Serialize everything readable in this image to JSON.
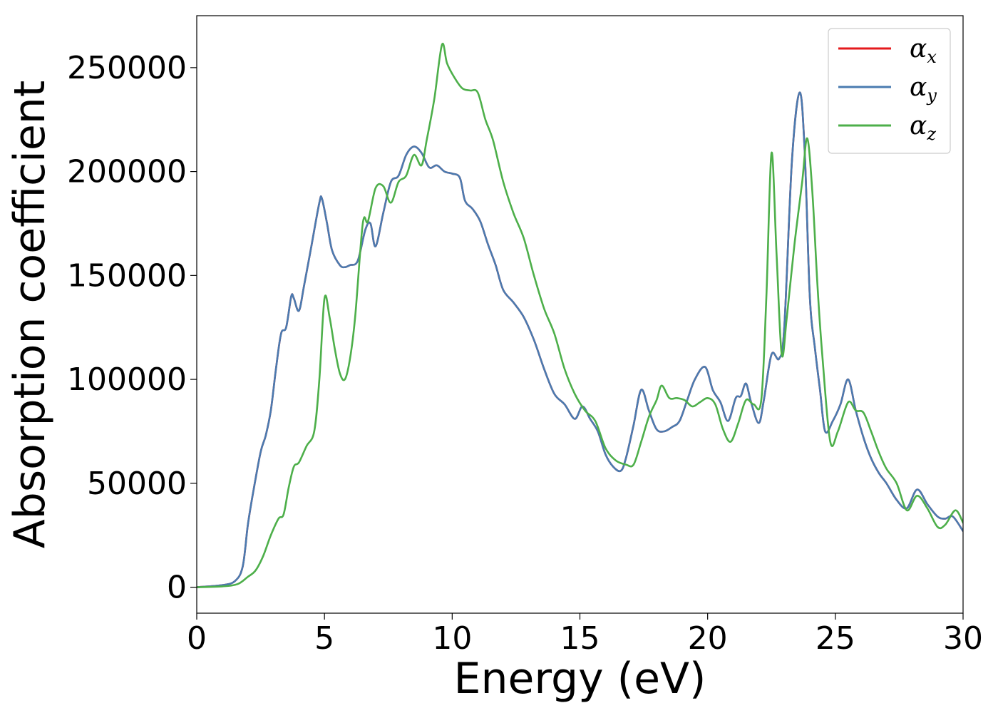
{
  "chart_data": {
    "type": "line",
    "xlabel": "Energy (eV)",
    "ylabel": "Absorption coefficient",
    "xlim": [
      0,
      30
    ],
    "ylim": [
      -12500,
      275000
    ],
    "xticks": [
      0,
      5,
      10,
      15,
      20,
      25,
      30
    ],
    "yticks": [
      0,
      50000,
      100000,
      150000,
      200000,
      250000
    ],
    "xtick_labels": [
      "0",
      "5",
      "10",
      "15",
      "20",
      "25",
      "30"
    ],
    "ytick_labels": [
      "0",
      "50000",
      "100000",
      "150000",
      "200000",
      "250000"
    ],
    "grid": false,
    "legend_position": "top-right",
    "series": [
      {
        "name": "α",
        "sub": "x",
        "color": "#e41a1c",
        "x": [
          0,
          1,
          1.5,
          1.8,
          2.0,
          2.2,
          2.5,
          2.7,
          2.9,
          3.1,
          3.3,
          3.5,
          3.7,
          3.8,
          4.0,
          4.2,
          4.5,
          4.8,
          4.9,
          5.1,
          5.3,
          5.6,
          5.8,
          6.0,
          6.3,
          6.6,
          6.8,
          7.0,
          7.3,
          7.6,
          7.9,
          8.2,
          8.5,
          8.8,
          9.1,
          9.4,
          9.7,
          10.0,
          10.3,
          10.5,
          10.8,
          11.1,
          11.4,
          11.7,
          12.0,
          12.4,
          12.8,
          13.2,
          13.6,
          14.0,
          14.4,
          14.8,
          15.1,
          15.4,
          15.7,
          16.0,
          16.3,
          16.6,
          16.8,
          17.1,
          17.4,
          17.7,
          18.0,
          18.3,
          18.6,
          18.9,
          19.2,
          19.5,
          19.9,
          20.2,
          20.5,
          20.8,
          21.1,
          21.3,
          21.5,
          21.7,
          22.0,
          22.2,
          22.5,
          22.8,
          23.0,
          23.3,
          23.6,
          23.8,
          24.0,
          24.2,
          24.4,
          24.6,
          24.9,
          25.2,
          25.5,
          25.8,
          26.1,
          26.4,
          26.7,
          27.0,
          27.4,
          27.8,
          28.2,
          28.6,
          29.0,
          29.3,
          29.6,
          30.0
        ],
        "y": [
          0,
          1000,
          3000,
          10000,
          30000,
          45000,
          65000,
          73000,
          85000,
          105000,
          122000,
          125000,
          140000,
          139000,
          133000,
          145000,
          165000,
          185000,
          187000,
          175000,
          162000,
          155000,
          154000,
          155000,
          157000,
          172000,
          175000,
          164000,
          180000,
          195000,
          198000,
          208000,
          212000,
          209000,
          202000,
          203000,
          200000,
          199000,
          197000,
          186000,
          182000,
          176000,
          165000,
          155000,
          143000,
          137000,
          130000,
          119000,
          105000,
          93000,
          88000,
          81000,
          87000,
          81000,
          75000,
          64000,
          58000,
          56000,
          62000,
          78000,
          95000,
          85000,
          76000,
          75000,
          77000,
          80000,
          90000,
          100000,
          106000,
          95000,
          89000,
          80000,
          91000,
          92000,
          98000,
          89000,
          79000,
          90000,
          112000,
          110000,
          125000,
          205000,
          238000,
          210000,
          140000,
          115000,
          95000,
          75000,
          80000,
          88000,
          100000,
          85000,
          72000,
          62000,
          55000,
          50000,
          42000,
          38000,
          47000,
          40000,
          34000,
          33000,
          34000,
          27000
        ]
      },
      {
        "name": "α",
        "sub": "y",
        "color": "#4a7bb0",
        "x": [
          0,
          1,
          1.5,
          1.8,
          2.0,
          2.2,
          2.5,
          2.7,
          2.9,
          3.1,
          3.3,
          3.5,
          3.7,
          3.8,
          4.0,
          4.2,
          4.5,
          4.8,
          4.9,
          5.1,
          5.3,
          5.6,
          5.8,
          6.0,
          6.3,
          6.6,
          6.8,
          7.0,
          7.3,
          7.6,
          7.9,
          8.2,
          8.5,
          8.8,
          9.1,
          9.4,
          9.7,
          10.0,
          10.3,
          10.5,
          10.8,
          11.1,
          11.4,
          11.7,
          12.0,
          12.4,
          12.8,
          13.2,
          13.6,
          14.0,
          14.4,
          14.8,
          15.1,
          15.4,
          15.7,
          16.0,
          16.3,
          16.6,
          16.8,
          17.1,
          17.4,
          17.7,
          18.0,
          18.3,
          18.6,
          18.9,
          19.2,
          19.5,
          19.9,
          20.2,
          20.5,
          20.8,
          21.1,
          21.3,
          21.5,
          21.7,
          22.0,
          22.2,
          22.5,
          22.8,
          23.0,
          23.3,
          23.6,
          23.8,
          24.0,
          24.2,
          24.4,
          24.6,
          24.9,
          25.2,
          25.5,
          25.8,
          26.1,
          26.4,
          26.7,
          27.0,
          27.4,
          27.8,
          28.2,
          28.6,
          29.0,
          29.3,
          29.6,
          30.0
        ],
        "y": [
          0,
          1000,
          3000,
          10000,
          30000,
          45000,
          65000,
          73000,
          85000,
          105000,
          122000,
          125000,
          140000,
          139000,
          133000,
          145000,
          165000,
          185000,
          187000,
          175000,
          162000,
          155000,
          154000,
          155000,
          157000,
          172000,
          175000,
          164000,
          180000,
          195000,
          198000,
          208000,
          212000,
          209000,
          202000,
          203000,
          200000,
          199000,
          197000,
          186000,
          182000,
          176000,
          165000,
          155000,
          143000,
          137000,
          130000,
          119000,
          105000,
          93000,
          88000,
          81000,
          87000,
          81000,
          75000,
          64000,
          58000,
          56000,
          62000,
          78000,
          95000,
          85000,
          76000,
          75000,
          77000,
          80000,
          90000,
          100000,
          106000,
          95000,
          89000,
          80000,
          91000,
          92000,
          98000,
          89000,
          79000,
          90000,
          112000,
          110000,
          125000,
          205000,
          238000,
          210000,
          140000,
          115000,
          95000,
          75000,
          80000,
          88000,
          100000,
          85000,
          72000,
          62000,
          55000,
          50000,
          42000,
          38000,
          47000,
          40000,
          34000,
          33000,
          34000,
          27000
        ]
      },
      {
        "name": "α",
        "sub": "z",
        "color": "#4daf4a",
        "x": [
          0,
          1,
          1.6,
          2.0,
          2.3,
          2.6,
          2.9,
          3.2,
          3.4,
          3.6,
          3.8,
          4.0,
          4.3,
          4.6,
          4.8,
          5.0,
          5.2,
          5.4,
          5.6,
          5.8,
          6.0,
          6.2,
          6.5,
          6.7,
          7.0,
          7.3,
          7.6,
          7.9,
          8.2,
          8.5,
          8.8,
          9.0,
          9.3,
          9.6,
          9.8,
          10.1,
          10.4,
          10.7,
          11.0,
          11.3,
          11.6,
          12.0,
          12.4,
          12.8,
          13.2,
          13.6,
          14.0,
          14.4,
          14.8,
          15.2,
          15.6,
          16.0,
          16.4,
          16.8,
          17.1,
          17.4,
          17.7,
          18.0,
          18.2,
          18.5,
          18.8,
          19.1,
          19.4,
          19.7,
          20.0,
          20.3,
          20.6,
          20.9,
          21.2,
          21.5,
          21.8,
          22.1,
          22.3,
          22.5,
          22.7,
          22.9,
          23.1,
          23.4,
          23.7,
          23.9,
          24.1,
          24.3,
          24.5,
          24.8,
          25.1,
          25.5,
          25.8,
          26.1,
          26.4,
          26.7,
          27.0,
          27.4,
          27.8,
          28.2,
          28.6,
          29.0,
          29.3,
          29.7,
          30.0
        ],
        "y": [
          0,
          400,
          1500,
          5000,
          8000,
          15000,
          25000,
          33000,
          35000,
          48000,
          58000,
          60000,
          68000,
          75000,
          100000,
          139000,
          130000,
          115000,
          103000,
          100000,
          110000,
          130000,
          175000,
          176000,
          192000,
          193000,
          185000,
          195000,
          198000,
          208000,
          203000,
          215000,
          235000,
          261000,
          252000,
          245000,
          240000,
          239000,
          238000,
          225000,
          215000,
          195000,
          180000,
          168000,
          150000,
          134000,
          122000,
          105000,
          93000,
          85000,
          80000,
          67000,
          61000,
          59000,
          59000,
          70000,
          82000,
          90000,
          97000,
          91000,
          91000,
          90000,
          87000,
          89000,
          91000,
          88000,
          76000,
          70000,
          79000,
          90000,
          88000,
          90000,
          140000,
          209000,
          160000,
          112000,
          130000,
          165000,
          195000,
          216000,
          190000,
          145000,
          110000,
          70000,
          75000,
          89000,
          85000,
          84000,
          75000,
          65000,
          57000,
          50000,
          37000,
          44000,
          38000,
          29000,
          30000,
          37000,
          31000
        ]
      }
    ]
  }
}
